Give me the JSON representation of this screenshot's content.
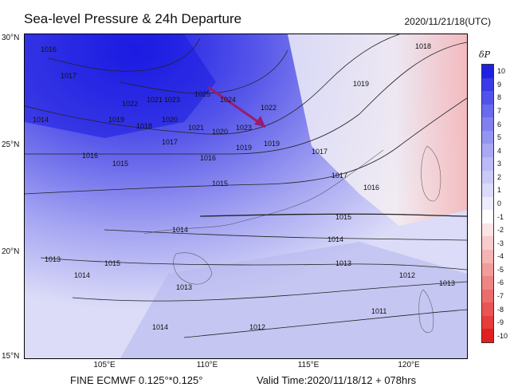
{
  "header": {
    "title": "Sea-level Pressure & 24h Departure",
    "datetime": "2020/11/21/18(UTC)"
  },
  "map": {
    "lat_labels": [
      "30°N",
      "25°N",
      "20°N",
      "15°N"
    ],
    "lon_labels": [
      "105°E",
      "110°E",
      "115°E",
      "120°E"
    ],
    "isobar_labels": [
      "1016",
      "1017",
      "1018",
      "1019",
      "1014",
      "1022",
      "1021",
      "1023",
      "1020",
      "1025",
      "1024",
      "1022",
      "1023",
      "1019",
      "1018",
      "1021",
      "1020",
      "1017",
      "1016",
      "1015",
      "1016",
      "1015",
      "1019",
      "1017",
      "1018",
      "1016",
      "1017",
      "1015",
      "1014",
      "1014",
      "1013",
      "1013",
      "1012",
      "1014",
      "1015",
      "1013",
      "1011",
      "1012",
      "1013",
      "1014",
      "1012",
      "1018",
      "1019"
    ],
    "arrow_color": "#9b1b6e",
    "land_color_high": "#2a2ae8",
    "sea_color": "#f4f4fb"
  },
  "colorbar": {
    "title": "δP",
    "labels": [
      "10",
      "9",
      "8",
      "7",
      "6",
      "5",
      "4",
      "3",
      "2",
      "1",
      "0",
      "-1",
      "-2",
      "-3",
      "-4",
      "-5",
      "-6",
      "-7",
      "-8",
      "-9",
      "-10"
    ],
    "colors": [
      "#2020e0",
      "#3a3ae6",
      "#5252ea",
      "#6a6aee",
      "#8080f0",
      "#9494f2",
      "#a8a8f4",
      "#babaf6",
      "#cacaf8",
      "#dadafa",
      "#ececfc",
      "#ffffff",
      "#fbe4e4",
      "#f8cccc",
      "#f5b4b4",
      "#f29c9c",
      "#ef8484",
      "#ec6c6c",
      "#e95454",
      "#e63c3c",
      "#e32020"
    ]
  },
  "footer": {
    "model": "FINE ECMWF 0.125°*0.125°",
    "valid": "Valid Time:2020/11/18/12 + 078hrs"
  }
}
